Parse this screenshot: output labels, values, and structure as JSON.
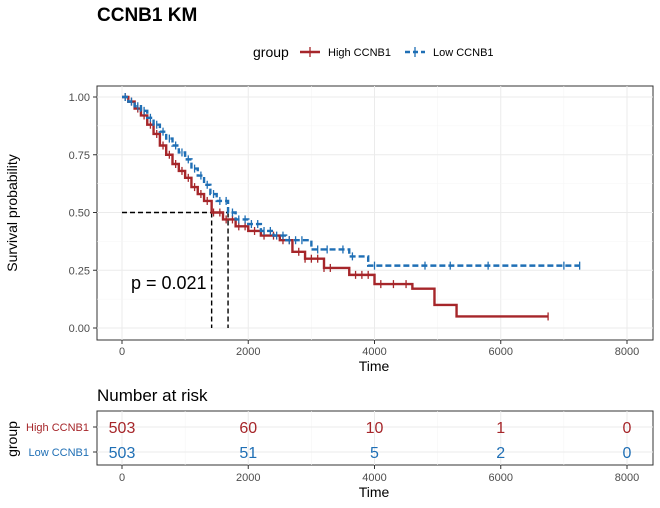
{
  "chart_data": [
    {
      "type": "line",
      "title": "CCNB1 KM",
      "xlabel": "Time",
      "ylabel": "Survival probability",
      "xlim": [
        0,
        8000
      ],
      "ylim": [
        0,
        1
      ],
      "x_ticks": [
        "0",
        "2000",
        "4000",
        "6000",
        "8000"
      ],
      "y_ticks": [
        "0.00",
        "0.25",
        "0.50",
        "0.75",
        "1.00"
      ],
      "grid": true,
      "legend": {
        "title": "group",
        "position": "top"
      },
      "annotation": "p = 0.021",
      "median_survival": [
        {
          "group": "High CCNB1",
          "x": 1420,
          "y": 0.5
        },
        {
          "group": "Low CCNB1",
          "x": 1680,
          "y": 0.5
        }
      ],
      "series": [
        {
          "name": "High CCNB1",
          "color": "#a6262a",
          "line_style": "solid",
          "points": [
            [
              0,
              1.0
            ],
            [
              100,
              0.98
            ],
            [
              200,
              0.95
            ],
            [
              300,
              0.92
            ],
            [
              400,
              0.88
            ],
            [
              500,
              0.84
            ],
            [
              600,
              0.79
            ],
            [
              700,
              0.75
            ],
            [
              800,
              0.71
            ],
            [
              900,
              0.68
            ],
            [
              1000,
              0.65
            ],
            [
              1100,
              0.61
            ],
            [
              1200,
              0.58
            ],
            [
              1300,
              0.55
            ],
            [
              1420,
              0.5
            ],
            [
              1600,
              0.47
            ],
            [
              1800,
              0.44
            ],
            [
              2000,
              0.42
            ],
            [
              2200,
              0.4
            ],
            [
              2500,
              0.38
            ],
            [
              2700,
              0.33
            ],
            [
              2900,
              0.3
            ],
            [
              3200,
              0.26
            ],
            [
              3600,
              0.23
            ],
            [
              4000,
              0.19
            ],
            [
              4600,
              0.17
            ],
            [
              4950,
              0.1
            ],
            [
              5300,
              0.05
            ],
            [
              6750,
              0.05
            ]
          ],
          "censor_x": [
            50,
            150,
            250,
            350,
            450,
            550,
            650,
            750,
            850,
            950,
            1050,
            1150,
            1250,
            1350,
            1450,
            1550,
            1650,
            1750,
            1850,
            1950,
            2100,
            2250,
            2400,
            2550,
            2650,
            2800,
            2900,
            3000,
            3100,
            3200,
            3300,
            3700,
            3800,
            3900,
            4100,
            4300,
            4500,
            6750
          ]
        },
        {
          "name": "Low CCNB1",
          "color": "#1f6fb5",
          "line_style": "dashed",
          "points": [
            [
              0,
              1.0
            ],
            [
              100,
              0.98
            ],
            [
              200,
              0.96
            ],
            [
              300,
              0.94
            ],
            [
              400,
              0.91
            ],
            [
              500,
              0.88
            ],
            [
              600,
              0.85
            ],
            [
              700,
              0.82
            ],
            [
              800,
              0.79
            ],
            [
              900,
              0.76
            ],
            [
              1000,
              0.73
            ],
            [
              1100,
              0.69
            ],
            [
              1200,
              0.66
            ],
            [
              1300,
              0.62
            ],
            [
              1400,
              0.58
            ],
            [
              1500,
              0.55
            ],
            [
              1680,
              0.5
            ],
            [
              1800,
              0.47
            ],
            [
              2000,
              0.45
            ],
            [
              2200,
              0.42
            ],
            [
              2400,
              0.4
            ],
            [
              2600,
              0.38
            ],
            [
              3000,
              0.34
            ],
            [
              3600,
              0.31
            ],
            [
              3900,
              0.27
            ],
            [
              7000,
              0.27
            ],
            [
              7250,
              0.27
            ]
          ],
          "censor_x": [
            50,
            150,
            250,
            350,
            450,
            550,
            650,
            750,
            850,
            950,
            1050,
            1150,
            1250,
            1350,
            1450,
            1550,
            1650,
            1750,
            1850,
            1950,
            2050,
            2150,
            2250,
            2350,
            2450,
            2550,
            2650,
            2750,
            2850,
            3100,
            3250,
            3500,
            3650,
            4000,
            4800,
            5200,
            5800,
            7000,
            7250
          ]
        }
      ]
    },
    {
      "type": "table",
      "title": "Number at risk",
      "xlabel": "Time",
      "ylabel": "group",
      "x": [
        0,
        2000,
        4000,
        6000,
        8000
      ],
      "x_ticks": [
        "0",
        "2000",
        "4000",
        "6000",
        "8000"
      ],
      "rows": [
        {
          "name": "High CCNB1",
          "color": "#a6262a",
          "values": [
            "503",
            "60",
            "10",
            "1",
            "0"
          ]
        },
        {
          "name": "Low CCNB1",
          "color": "#1f6fb5",
          "values": [
            "503",
            "51",
            "5",
            "2",
            "0"
          ]
        }
      ]
    }
  ]
}
